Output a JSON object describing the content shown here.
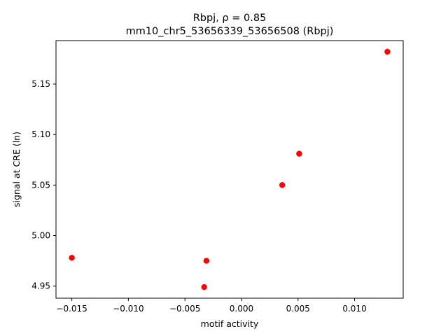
{
  "chart_data": {
    "type": "scatter",
    "title_line1": "Rbpj, ρ = 0.85",
    "title_line2": "mm10_chr5_53656339_53656508 (Rbpj)",
    "xlabel": "motif activity",
    "ylabel": "signal at CRE (ln)",
    "xlim": [
      -0.0164,
      0.0143
    ],
    "ylim": [
      4.938,
      5.193
    ],
    "xticks": [
      {
        "value": -0.015,
        "label": "−0.015"
      },
      {
        "value": -0.01,
        "label": "−0.010"
      },
      {
        "value": -0.005,
        "label": "−0.005"
      },
      {
        "value": 0.0,
        "label": "0.000"
      },
      {
        "value": 0.005,
        "label": "0.005"
      },
      {
        "value": 0.01,
        "label": "0.010"
      }
    ],
    "yticks": [
      {
        "value": 4.95,
        "label": "4.95"
      },
      {
        "value": 5.0,
        "label": "5.00"
      },
      {
        "value": 5.05,
        "label": "5.05"
      },
      {
        "value": 5.1,
        "label": "5.10"
      },
      {
        "value": 5.15,
        "label": "5.15"
      }
    ],
    "points": [
      {
        "x": -0.015,
        "y": 4.978
      },
      {
        "x": -0.0031,
        "y": 4.975
      },
      {
        "x": -0.0033,
        "y": 4.949
      },
      {
        "x": 0.0036,
        "y": 5.05
      },
      {
        "x": 0.0051,
        "y": 5.081
      },
      {
        "x": 0.0129,
        "y": 5.182
      }
    ],
    "marker_color": "#ff0000",
    "grid": false
  }
}
